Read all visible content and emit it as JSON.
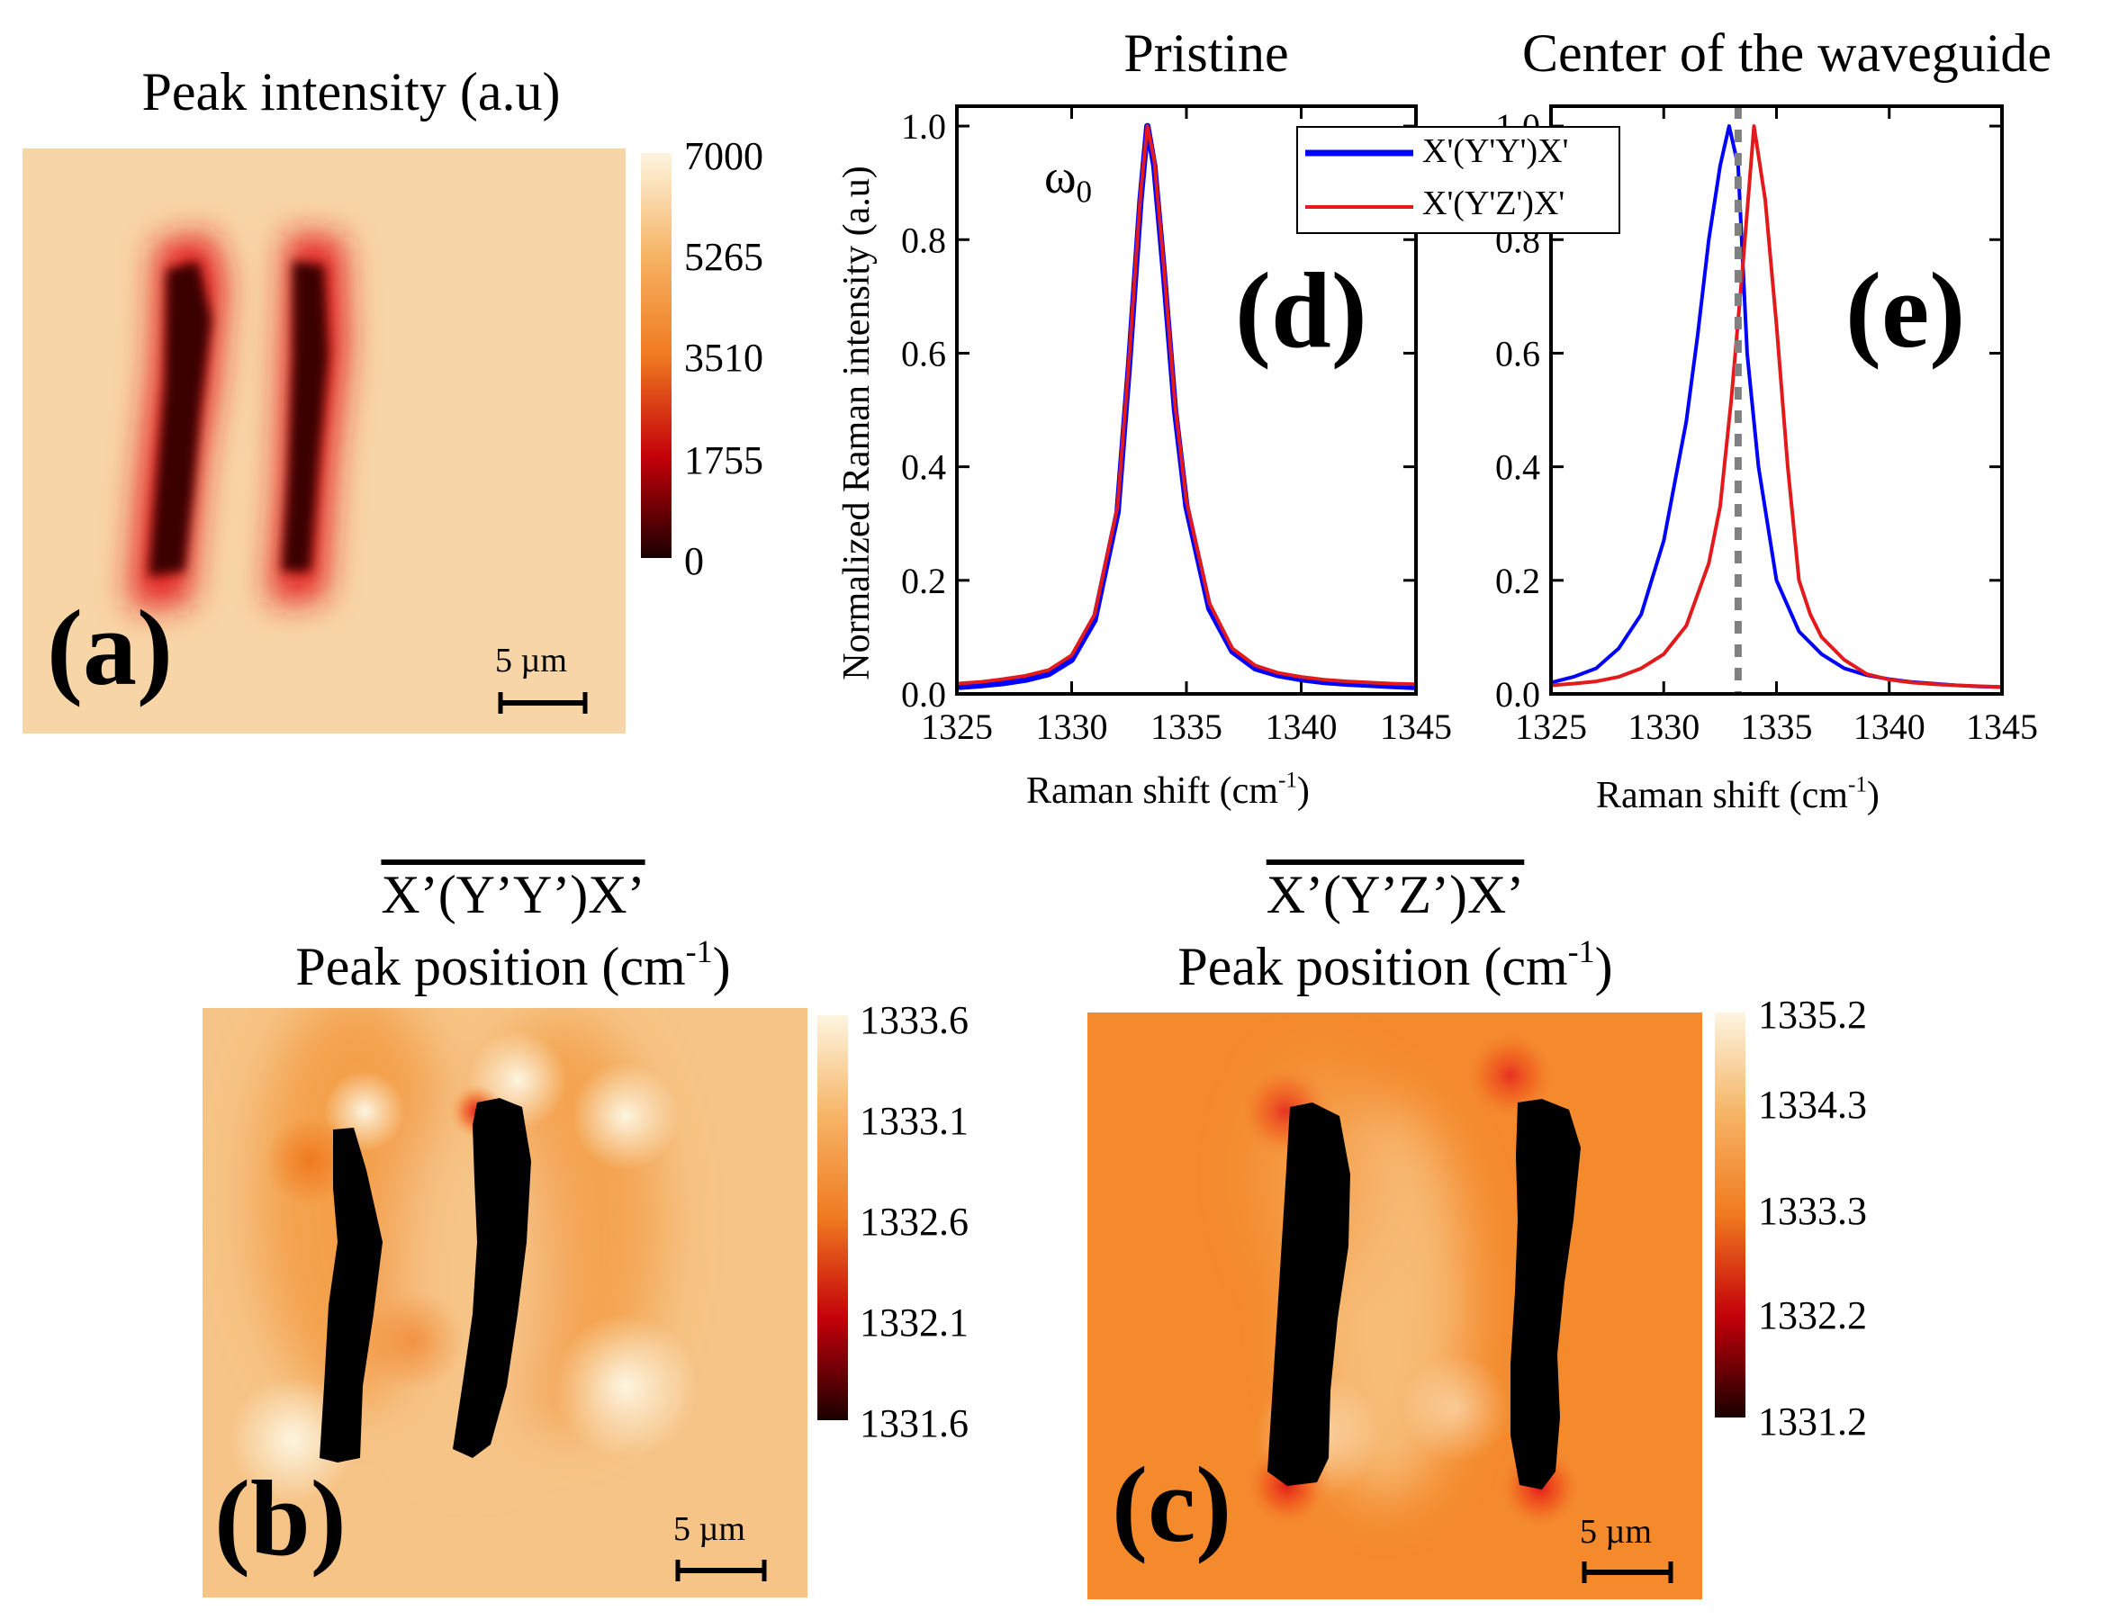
{
  "figure": {
    "panel_a": {
      "title": "Peak intensity (a.u)",
      "label": "(a)",
      "colorbar_ticks": [
        "7000",
        "5265",
        "3510",
        "1755",
        "0"
      ],
      "scale_bar": "5 µm"
    },
    "panel_b": {
      "config_title": "X’(Y’Y’)X’",
      "title_text": "Peak position (cm",
      "title_sup": "-1",
      "title_end": ")",
      "label": "(b)",
      "colorbar_ticks": [
        "1333.6",
        "1333.1",
        "1332.6",
        "1332.1",
        "1331.6"
      ],
      "scale_bar": "5 µm"
    },
    "panel_c": {
      "config_title": "X’(Y’Z’)X’",
      "title_text": "Peak position (cm",
      "title_sup": "-1",
      "title_end": ")",
      "label": "(c)",
      "colorbar_ticks": [
        "1335.2",
        "1334.3",
        "1333.3",
        "1332.2",
        "1331.2"
      ],
      "scale_bar": "5 µm"
    },
    "colors": {
      "map_light": "#fdf3dc",
      "map_orange": "#f59a3c",
      "map_red": "#e31a1c",
      "map_dark": "#2b0000",
      "series_blue": "#0000ff",
      "series_red": "#e31a1c",
      "dashed_gray": "#808080"
    }
  },
  "chart_data": [
    {
      "type": "line",
      "panel": "(d)",
      "title": "Pristine",
      "annotation": "ω",
      "annotation_sub": "0",
      "xlabel": "Raman shift (cm",
      "xlabel_sup": "-1",
      "xlabel_end": ")",
      "ylabel": "Normalized Raman intensity (a.u)",
      "xlim": [
        1325,
        1345
      ],
      "ylim": [
        0,
        1.0
      ],
      "xticks": [
        "1325",
        "1330",
        "1335",
        "1340",
        "1345"
      ],
      "yticks": [
        "0.0",
        "0.2",
        "0.4",
        "0.6",
        "0.8",
        "1.0"
      ],
      "series": [
        {
          "name": "X'(Y'Y')X'",
          "color": "#0000ff",
          "x": [
            1325,
            1326,
            1327,
            1328,
            1329,
            1330,
            1331,
            1332,
            1332.5,
            1333,
            1333.3,
            1333.6,
            1334,
            1334.5,
            1335,
            1336,
            1337,
            1338,
            1339,
            1340,
            1341,
            1342,
            1343,
            1344,
            1345
          ],
          "y": [
            0.012,
            0.015,
            0.019,
            0.025,
            0.035,
            0.06,
            0.13,
            0.32,
            0.58,
            0.87,
            1.0,
            0.93,
            0.75,
            0.5,
            0.33,
            0.15,
            0.075,
            0.045,
            0.033,
            0.026,
            0.021,
            0.018,
            0.016,
            0.014,
            0.012
          ]
        },
        {
          "name": "X'(Y'Z')X'",
          "color": "#e31a1c",
          "x": [
            1325,
            1326,
            1327,
            1328,
            1329,
            1330,
            1331,
            1332,
            1332.5,
            1333,
            1333.3,
            1333.6,
            1334,
            1334.5,
            1335,
            1336,
            1337,
            1338,
            1339,
            1340,
            1341,
            1342,
            1343,
            1344,
            1345
          ],
          "y": [
            0.018,
            0.021,
            0.026,
            0.032,
            0.042,
            0.068,
            0.14,
            0.33,
            0.59,
            0.88,
            1.0,
            0.94,
            0.76,
            0.51,
            0.34,
            0.16,
            0.08,
            0.05,
            0.037,
            0.03,
            0.025,
            0.022,
            0.02,
            0.018,
            0.017
          ]
        }
      ]
    },
    {
      "type": "line",
      "panel": "(e)",
      "title": "Center of the waveguide",
      "xlabel": "Raman shift (cm",
      "xlabel_sup": "-1",
      "xlabel_end": ")",
      "xlim": [
        1325,
        1345
      ],
      "ylim": [
        0,
        1.0
      ],
      "xticks": [
        "1325",
        "1330",
        "1335",
        "1340",
        "1345"
      ],
      "yticks": [
        "0.0",
        "0.2",
        "0.4",
        "0.6",
        "0.8",
        "1.0"
      ],
      "reference_line_x": 1333.3,
      "legend": [
        "X'(Y'Y')X'",
        "X'(Y'Z')X'"
      ],
      "series": [
        {
          "name": "X'(Y'Y')X'",
          "color": "#0000ff",
          "x": [
            1325,
            1326,
            1327,
            1328,
            1329,
            1330,
            1331,
            1331.5,
            1332,
            1332.5,
            1332.9,
            1333.3,
            1333.7,
            1334.2,
            1335,
            1336,
            1337,
            1338,
            1339,
            1340,
            1341,
            1342,
            1343,
            1344,
            1345
          ],
          "y": [
            0.02,
            0.03,
            0.045,
            0.08,
            0.14,
            0.27,
            0.48,
            0.63,
            0.8,
            0.93,
            1.0,
            0.93,
            0.6,
            0.4,
            0.2,
            0.11,
            0.07,
            0.045,
            0.033,
            0.026,
            0.021,
            0.018,
            0.015,
            0.013,
            0.012
          ]
        },
        {
          "name": "X'(Y'Z')X'",
          "color": "#e31a1c",
          "x": [
            1325,
            1326,
            1327,
            1328,
            1329,
            1330,
            1331,
            1332,
            1332.5,
            1333,
            1333.5,
            1334,
            1334.5,
            1335,
            1335.5,
            1336,
            1336.5,
            1337,
            1338,
            1339,
            1340,
            1341,
            1342,
            1343,
            1345
          ],
          "y": [
            0.015,
            0.018,
            0.022,
            0.03,
            0.045,
            0.07,
            0.12,
            0.23,
            0.33,
            0.52,
            0.75,
            1.0,
            0.87,
            0.65,
            0.4,
            0.2,
            0.14,
            0.1,
            0.06,
            0.035,
            0.025,
            0.02,
            0.017,
            0.015,
            0.012
          ]
        }
      ]
    }
  ]
}
